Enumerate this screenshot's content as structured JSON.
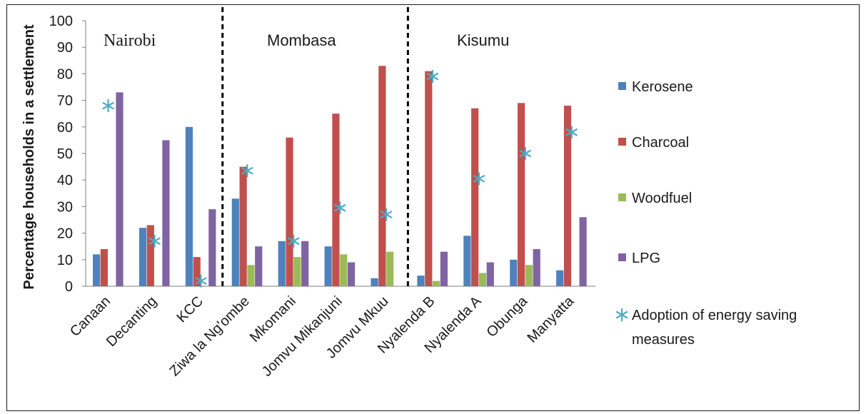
{
  "chart_data": {
    "type": "bar",
    "ylabel": "Percentage households in a settlement",
    "ylim": [
      0,
      100
    ],
    "yticks": [
      "0",
      "10",
      "20",
      "30",
      "40",
      "50",
      "60",
      "70",
      "80",
      "90",
      "100"
    ],
    "grid": false,
    "legend_position": "right",
    "categories": [
      "Canaan",
      "Decanting",
      "KCC",
      "Ziwa la Ng'ombe",
      "Mkomani",
      "Jomvu Mikanjuni",
      "Jomvu Mkuu",
      "Nyalenda B",
      "Nyalenda A",
      "Obunga",
      "Manyatta"
    ],
    "regions": [
      {
        "label": "Nairobi",
        "start": 0,
        "end": 2
      },
      {
        "label": "Mombasa",
        "start": 3,
        "end": 6
      },
      {
        "label": "Kisumu",
        "start": 7,
        "end": 10
      }
    ],
    "series": [
      {
        "name": "Kerosene",
        "color": "#4f81bd",
        "values": [
          12,
          22,
          60,
          33,
          17,
          15,
          3,
          4,
          19,
          10,
          6
        ]
      },
      {
        "name": "Charcoal",
        "color": "#c0504d",
        "values": [
          14,
          23,
          11,
          45,
          56,
          65,
          83,
          81,
          67,
          69,
          68
        ]
      },
      {
        "name": "Woodfuel",
        "color": "#9bbb59",
        "values": [
          0,
          0,
          0,
          8,
          11,
          12,
          13,
          2,
          5,
          8,
          0
        ]
      },
      {
        "name": "LPG",
        "color": "#8064a2",
        "values": [
          73,
          55,
          29,
          15,
          17,
          9,
          0,
          13,
          9,
          14,
          26
        ]
      }
    ],
    "markers": {
      "name": "Adoption of energy saving measures",
      "color": "#4bacc6",
      "values": [
        68,
        17,
        2,
        43.5,
        17,
        29.5,
        27,
        79,
        40.5,
        50,
        58
      ]
    }
  }
}
